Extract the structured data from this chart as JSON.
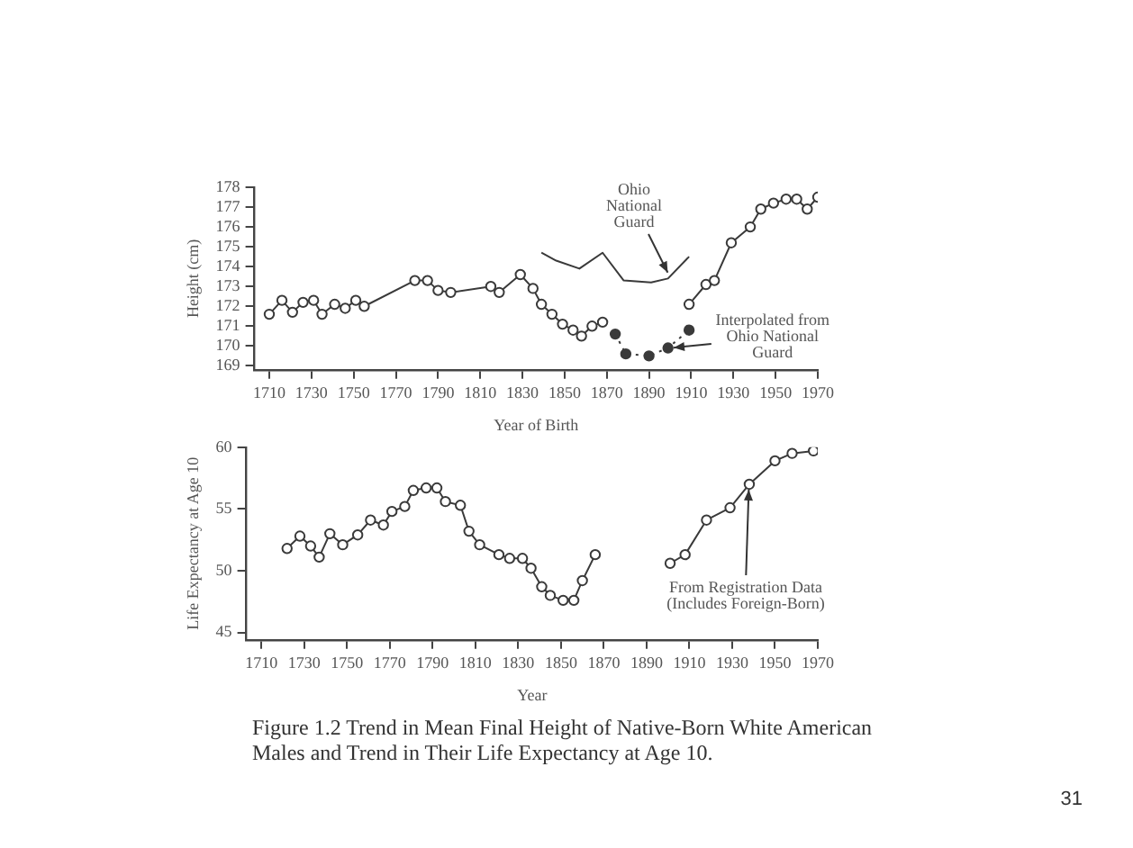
{
  "chart_data": [
    {
      "type": "line",
      "ylabel": "Height (cm)",
      "xlabel": "Year of Birth",
      "xlim": [
        1703,
        1970
      ],
      "xticks": [
        1710,
        1730,
        1750,
        1770,
        1790,
        1810,
        1830,
        1850,
        1870,
        1890,
        1910,
        1930,
        1950,
        1970
      ],
      "ylim": [
        168.8,
        178
      ],
      "yticks": [
        169,
        170,
        171,
        172,
        173,
        174,
        175,
        176,
        177,
        178
      ],
      "grid": false,
      "series": [
        {
          "color": "#3a3a3a",
          "marker": "circle",
          "line_style": "solid",
          "x": [
            1710,
            1716,
            1721,
            1726,
            1731,
            1735,
            1741,
            1746,
            1751,
            1755,
            1779,
            1785,
            1790,
            1796,
            1815,
            1819,
            1829,
            1835,
            1839,
            1844,
            1849,
            1854,
            1858,
            1863,
            1868,
            1890,
            1909,
            1917,
            1921,
            1929,
            1938,
            1943,
            1949,
            1955,
            1960,
            1965,
            1970
          ],
          "values": [
            171.6,
            172.3,
            171.7,
            172.2,
            172.3,
            171.6,
            172.1,
            171.9,
            172.3,
            172.0,
            173.3,
            173.3,
            172.8,
            172.7,
            173.0,
            172.7,
            173.6,
            172.9,
            172.1,
            171.6,
            171.1,
            170.8,
            170.5,
            171.0,
            171.2,
            null,
            172.1,
            173.1,
            173.3,
            175.2,
            176.0,
            176.9,
            177.2,
            177.4,
            177.4,
            176.9,
            177.5
          ]
        },
        {
          "color": "#3a3a3a",
          "marker": "none",
          "line_style": "solid",
          "x": [
            1839,
            1846,
            1857,
            1868,
            1878,
            1891,
            1899,
            1909
          ],
          "values": [
            174.7,
            174.3,
            173.9,
            174.7,
            173.3,
            173.2,
            173.4,
            174.5
          ]
        },
        {
          "color": "#3a3a3a",
          "marker": "circle",
          "line_style": "dotted",
          "x": [
            1874,
            1879,
            1890,
            1899,
            1909
          ],
          "values": [
            170.6,
            169.6,
            169.5,
            169.9,
            170.8
          ]
        }
      ],
      "annotations": [
        {
          "text": "Ohio National Guard",
          "x": 1900,
          "y": 173.4
        },
        {
          "text": "Interpolated from Ohio National Guard",
          "x": 1899,
          "y": 169.9
        }
      ]
    },
    {
      "type": "line",
      "ylabel": "Life Expectancy at Age 10",
      "xlabel": "Year",
      "xlim": [
        1703,
        1970
      ],
      "xticks": [
        1710,
        1730,
        1750,
        1770,
        1790,
        1810,
        1830,
        1850,
        1870,
        1890,
        1910,
        1930,
        1950,
        1970
      ],
      "ylim": [
        44.4,
        60
      ],
      "yticks": [
        45,
        50,
        55,
        60
      ],
      "grid": false,
      "marker": "circle",
      "series": [
        {
          "color": "#3a3a3a",
          "line_style": "solid",
          "x": [
            1722,
            1728,
            1733,
            1737,
            1742,
            1748,
            1755,
            1761,
            1767,
            1771,
            1777,
            1781,
            1787,
            1792,
            1796,
            1803,
            1807,
            1812,
            1821,
            1826,
            1832,
            1836,
            1841,
            1845,
            1851,
            1856,
            1860,
            1866
          ],
          "values": [
            51.8,
            52.8,
            52.0,
            51.1,
            53.0,
            52.1,
            52.9,
            54.1,
            53.7,
            54.8,
            55.2,
            56.5,
            56.7,
            56.7,
            55.6,
            55.3,
            53.2,
            52.1,
            51.3,
            51.0,
            51.0,
            50.2,
            48.7,
            48.0,
            47.6,
            47.6,
            49.2,
            51.3
          ]
        },
        {
          "color": "#3a3a3a",
          "line_style": "solid",
          "x": [
            1901,
            1908,
            1918,
            1929,
            1938,
            1950,
            1958,
            1968
          ],
          "values": [
            50.6,
            51.3,
            54.1,
            55.1,
            57.0,
            58.9,
            59.5,
            59.7
          ]
        }
      ],
      "annotations": [
        {
          "text": "From Registration Data (Includes Foreign-Born)",
          "x": 1938,
          "y": 57.0
        },
        "Figure 1.2 Trend in Mean Final Height of Native-Born White American Males and Trend in Their Life Expectancy at Age 10.",
        "31"
      ]
    }
  ]
}
